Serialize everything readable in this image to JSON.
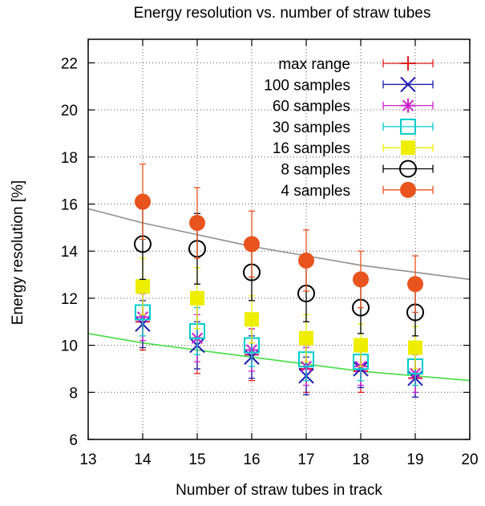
{
  "chart_data": {
    "type": "scatter",
    "title": "Energy resolution vs. number of straw tubes",
    "xlabel": "Number of straw tubes in track",
    "ylabel": "Energy resolution   [%]",
    "xlim": [
      13,
      20
    ],
    "ylim": [
      6,
      23
    ],
    "x_ticks": [
      "13",
      "14",
      "15",
      "16",
      "17",
      "18",
      "19",
      "20"
    ],
    "y_ticks": [
      "6",
      "8",
      "10",
      "12",
      "14",
      "16",
      "18",
      "20",
      "22"
    ],
    "grid": true,
    "legend_position": "top-right",
    "x": [
      14,
      15,
      16,
      17,
      18,
      19
    ],
    "series": [
      {
        "name": "max range",
        "color": "#e41a1c",
        "marker": "plus",
        "values": [
          11.0,
          10.3,
          9.6,
          9.0,
          8.9,
          8.6
        ],
        "errors": [
          1.2,
          1.5,
          1.1,
          1.0,
          0.9,
          0.8
        ]
      },
      {
        "name": "100 samples",
        "color": "#1b1bb3",
        "marker": "cross",
        "values": [
          10.9,
          10.0,
          9.5,
          8.7,
          9.0,
          8.6
        ],
        "errors": [
          1.0,
          1.0,
          0.9,
          0.8,
          0.8,
          0.8
        ]
      },
      {
        "name": "60 samples",
        "color": "#cc22cc",
        "marker": "star",
        "values": [
          11.2,
          10.3,
          9.8,
          9.1,
          9.1,
          8.8
        ],
        "errors": [
          1.0,
          1.0,
          0.9,
          0.8,
          0.8,
          0.8
        ]
      },
      {
        "name": "30 samples",
        "color": "#00cccc",
        "marker": "open-square",
        "values": [
          11.4,
          10.6,
          10.0,
          9.4,
          9.3,
          9.1
        ],
        "errors": [
          1.0,
          1.0,
          0.9,
          0.9,
          0.8,
          0.8
        ]
      },
      {
        "name": "16 samples",
        "color": "#eeee00",
        "marker": "filled-square",
        "values": [
          12.5,
          12.0,
          11.1,
          10.3,
          10.0,
          9.9
        ],
        "errors": [
          1.2,
          1.3,
          1.0,
          1.0,
          0.9,
          0.9
        ]
      },
      {
        "name": "8 samples",
        "color": "#000000",
        "marker": "open-circle",
        "values": [
          14.3,
          14.1,
          13.1,
          12.2,
          11.6,
          11.4
        ],
        "errors": [
          1.5,
          1.5,
          1.2,
          1.2,
          1.1,
          1.0
        ]
      },
      {
        "name": "4 samples",
        "color": "#e8531e",
        "marker": "filled-circle",
        "values": [
          16.1,
          15.2,
          14.3,
          13.6,
          12.8,
          12.6
        ],
        "errors": [
          1.6,
          1.5,
          1.4,
          1.3,
          1.2,
          1.2
        ]
      }
    ],
    "fit_curves": [
      {
        "color": "#909090",
        "x": [
          13,
          14,
          15,
          16,
          17,
          18,
          19,
          20
        ],
        "y": [
          15.8,
          15.2,
          14.7,
          14.2,
          13.8,
          13.4,
          13.1,
          12.8
        ]
      },
      {
        "color": "#44dd44",
        "x": [
          13,
          14,
          15,
          16,
          17,
          18,
          19,
          20
        ],
        "y": [
          10.5,
          10.1,
          9.8,
          9.5,
          9.2,
          8.9,
          8.7,
          8.5
        ]
      }
    ]
  }
}
